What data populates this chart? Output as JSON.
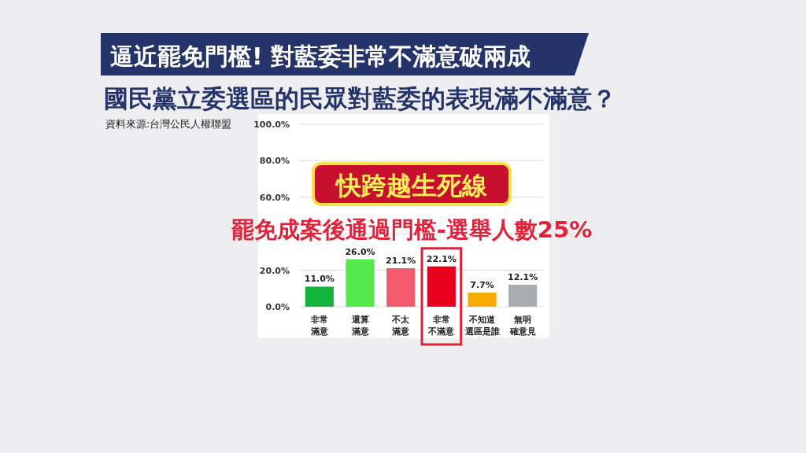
{
  "chart_data": {
    "type": "bar",
    "title": "逼近罷免門檻! 對藍委非常不滿意破兩成",
    "subtitle": "國民黨立委選區的民眾對藍委的表現滿不滿意？",
    "categories": [
      "非常滿意",
      "還算滿意",
      "不太滿意",
      "非常不滿意",
      "不知道選區是誰",
      "無明確意見"
    ],
    "values": [
      11.0,
      26.0,
      21.1,
      22.1,
      7.7,
      12.1
    ],
    "colors": [
      "#12b43c",
      "#55e84c",
      "#f25a6e",
      "#e8001c",
      "#f8ac00",
      "#a9acb0"
    ],
    "value_labels": [
      "11.0%",
      "26.0%",
      "21.1%",
      "22.1%",
      "7.7%",
      "12.1%"
    ],
    "ylim": [
      0,
      100
    ],
    "yticks": [
      {
        "value": 0,
        "label": "0.0%"
      },
      {
        "value": 20,
        "label": "20.0%"
      },
      {
        "value": 40,
        "label": null
      },
      {
        "value": 60,
        "label": "60.0%"
      },
      {
        "value": 80,
        "label": "80.0%"
      },
      {
        "value": 100,
        "label": "100.0%"
      }
    ],
    "grid": "y",
    "annotations": [
      "資料來源:台灣公民人權聯盟",
      "快跨越生死線",
      "罷免成案後通過門檻-選舉人數25%"
    ]
  }
}
